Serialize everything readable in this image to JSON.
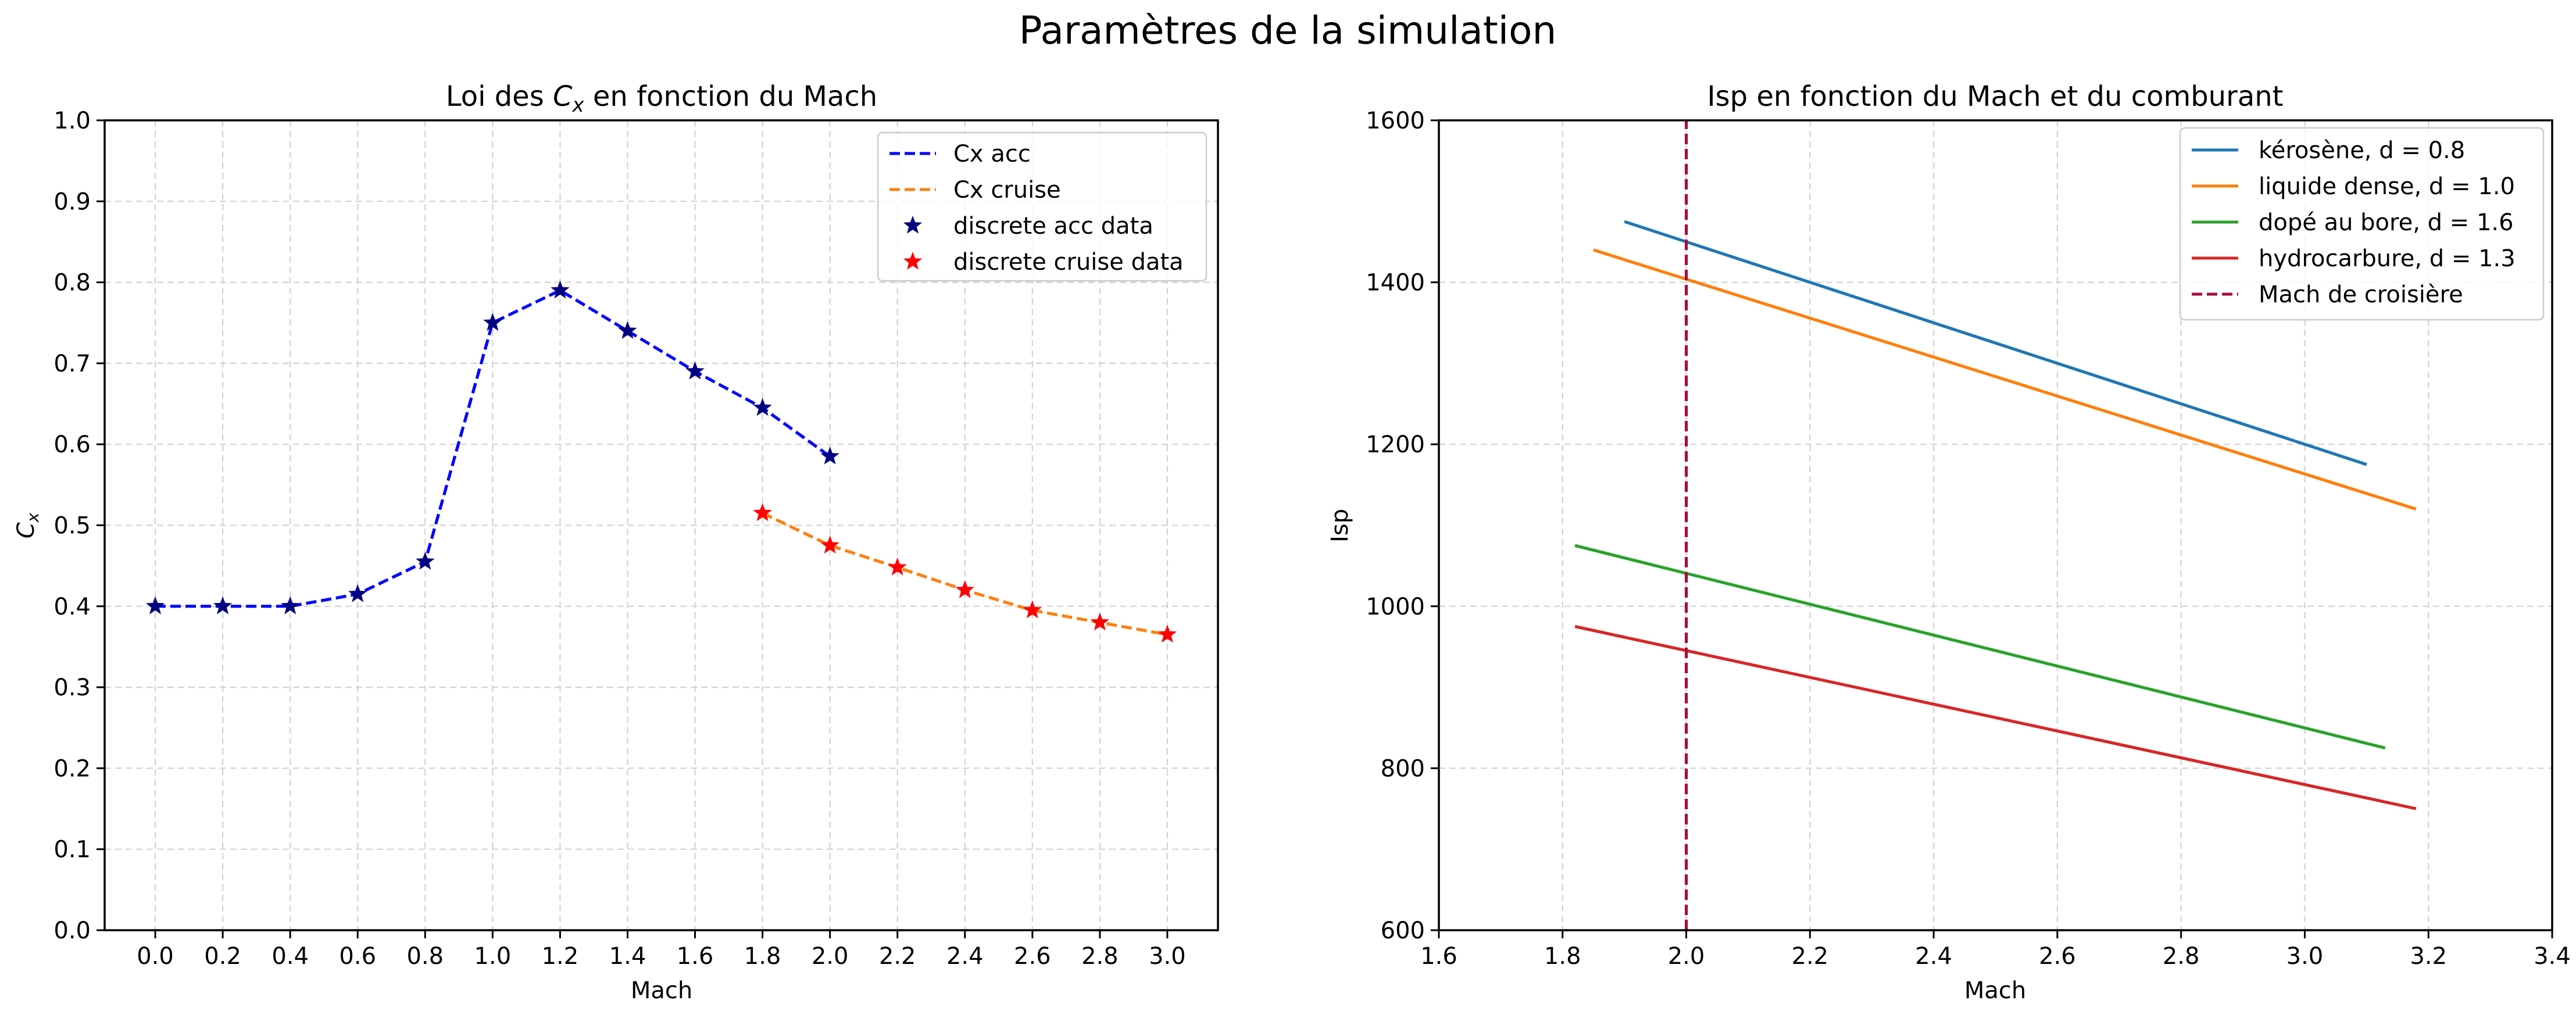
{
  "figure_title": "Paramètres de la simulation",
  "chart_data": [
    {
      "type": "line",
      "title_parts": [
        "Loi des ",
        "C",
        "x",
        " en fonction du Mach"
      ],
      "xlabel": "Mach",
      "ylabel_parts": [
        "C",
        "x"
      ],
      "xlim": [
        -0.15,
        3.15
      ],
      "ylim": [
        0,
        1.0
      ],
      "xticks": [
        "0.0",
        "0.2",
        "0.4",
        "0.6",
        "0.8",
        "1.0",
        "1.2",
        "1.4",
        "1.6",
        "1.8",
        "2.0",
        "2.2",
        "2.4",
        "2.6",
        "2.8",
        "3.0"
      ],
      "yticks": [
        "0.0",
        "0.1",
        "0.2",
        "0.3",
        "0.4",
        "0.5",
        "0.6",
        "0.7",
        "0.8",
        "0.9",
        "1.0"
      ],
      "grid": true,
      "legend_position": "upper right",
      "series": [
        {
          "name": "Cx acc",
          "style": "dashed line",
          "color": "#0000ff",
          "x": [
            0.0,
            0.2,
            0.4,
            0.6,
            0.8,
            1.0,
            1.2,
            1.4,
            1.6,
            1.8,
            2.0
          ],
          "y": [
            0.4,
            0.4,
            0.4,
            0.415,
            0.455,
            0.75,
            0.79,
            0.74,
            0.69,
            0.645,
            0.585
          ]
        },
        {
          "name": "Cx cruise",
          "style": "dashed line",
          "color": "#ff7f0e",
          "x": [
            1.8,
            2.0,
            2.2,
            2.4,
            2.6,
            2.8,
            3.0
          ],
          "y": [
            0.515,
            0.475,
            0.448,
            0.42,
            0.395,
            0.38,
            0.365
          ]
        },
        {
          "name": "discrete acc data",
          "style": "star markers",
          "color": "#000080",
          "x": [
            0.0,
            0.2,
            0.4,
            0.6,
            0.8,
            1.0,
            1.2,
            1.4,
            1.6,
            1.8,
            2.0
          ],
          "y": [
            0.4,
            0.4,
            0.4,
            0.415,
            0.455,
            0.75,
            0.79,
            0.74,
            0.69,
            0.645,
            0.585
          ]
        },
        {
          "name": "discrete cruise data",
          "style": "star markers",
          "color": "#ff0000",
          "x": [
            1.8,
            2.0,
            2.2,
            2.4,
            2.6,
            2.8,
            3.0
          ],
          "y": [
            0.515,
            0.475,
            0.448,
            0.42,
            0.395,
            0.38,
            0.365
          ]
        }
      ]
    },
    {
      "type": "line",
      "title": "Isp en fonction du Mach et du comburant",
      "xlabel": "Mach",
      "ylabel": "Isp",
      "xlim": [
        1.6,
        3.4
      ],
      "ylim": [
        600,
        1600
      ],
      "xticks": [
        "1.6",
        "1.8",
        "2.0",
        "2.2",
        "2.4",
        "2.6",
        "2.8",
        "3.0",
        "3.2",
        "3.4"
      ],
      "yticks": [
        "600",
        "800",
        "1000",
        "1200",
        "1400",
        "1600"
      ],
      "grid": true,
      "legend_position": "upper right",
      "series": [
        {
          "name": "kérosène, d = 0.8",
          "color": "#1f77b4",
          "x": [
            1.9,
            3.1
          ],
          "y": [
            1475,
            1175
          ]
        },
        {
          "name": "liquide dense, d = 1.0",
          "color": "#ff7f0e",
          "x": [
            1.85,
            3.18
          ],
          "y": [
            1440,
            1120
          ]
        },
        {
          "name": "dopé au bore, d = 1.6",
          "color": "#2ca02c",
          "x": [
            1.82,
            3.13
          ],
          "y": [
            1075,
            825
          ]
        },
        {
          "name": "hydrocarbure, d = 1.3",
          "color": "#d62728",
          "x": [
            1.82,
            3.18
          ],
          "y": [
            975,
            750
          ]
        },
        {
          "name": "Mach de croisière",
          "color": "#a50f3c",
          "style": "dashed vertical line",
          "x": [
            2.0,
            2.0
          ],
          "y": [
            600,
            1600
          ]
        }
      ]
    }
  ]
}
